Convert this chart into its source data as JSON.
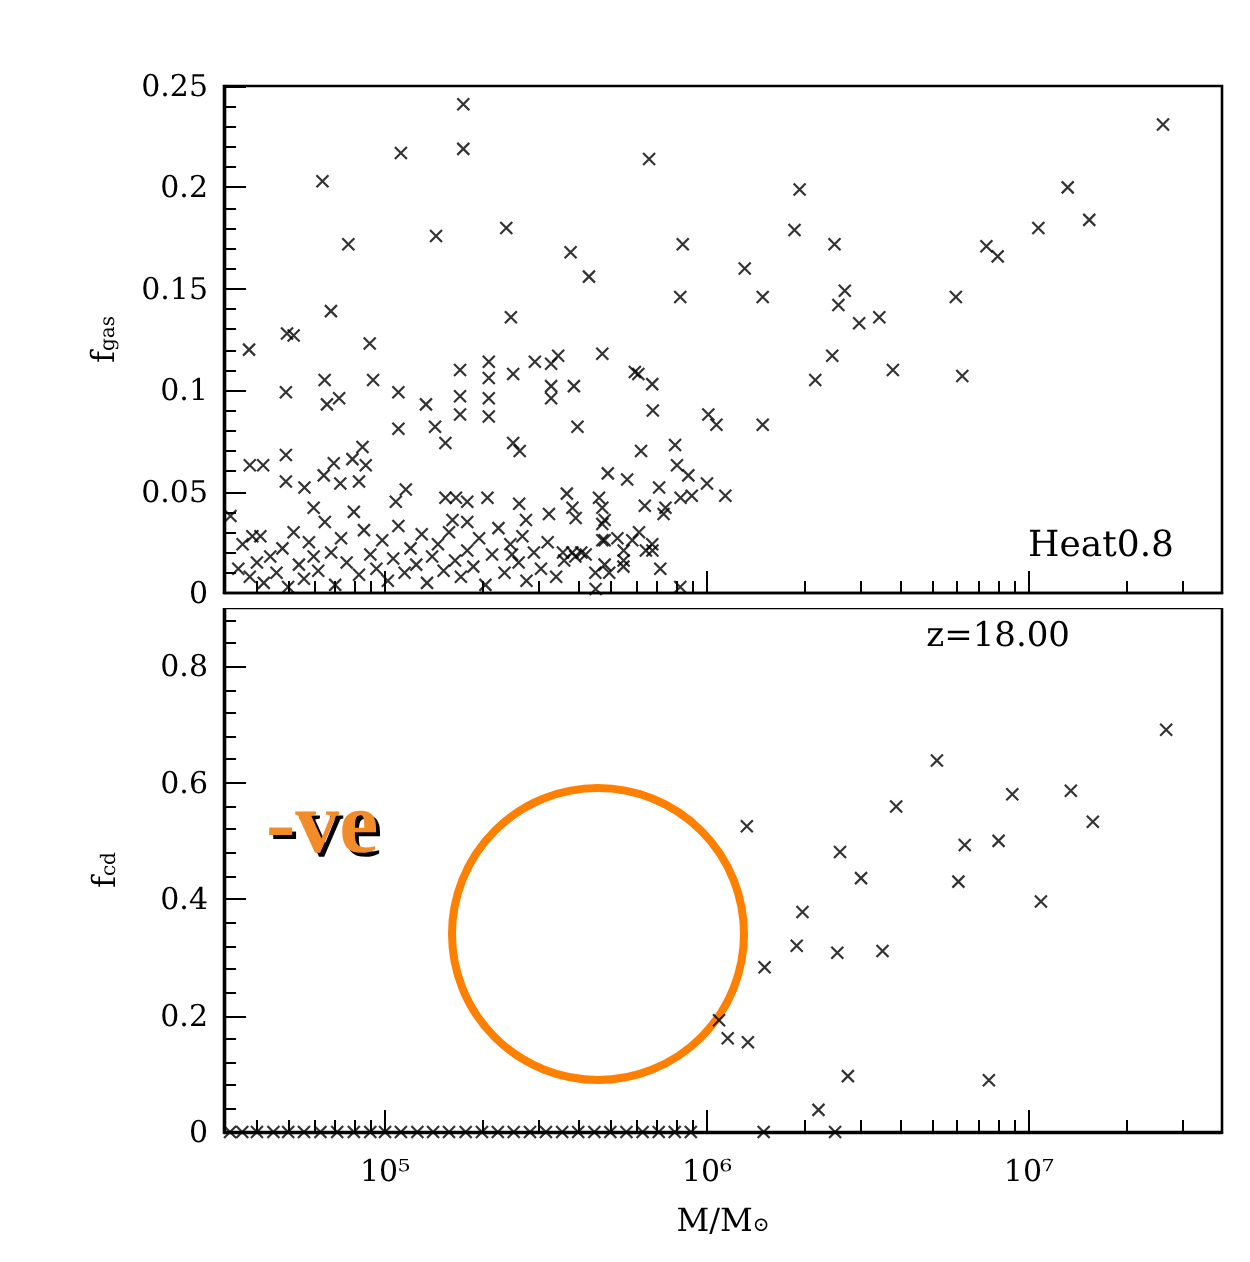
{
  "chart_data": [
    {
      "type": "scatter",
      "ylabel": "f$_{gas}$",
      "annotations": [
        "Heat0.8"
      ],
      "log": "x",
      "grid": false,
      "marker": "cross",
      "tick_labels": "y",
      "xlim": [
        31600,
        39800000
      ],
      "xticks": [
        {
          "value": 100000,
          "label": null
        },
        {
          "value": 1000000,
          "label": null
        },
        {
          "value": 10000000,
          "label": null
        }
      ],
      "ylim": [
        0,
        0.25
      ],
      "yticks": [
        0,
        0.05,
        0.1,
        0.15,
        0.2,
        0.25
      ],
      "series": [
        {
          "color": "#000000",
          "x": [
            175000,
            112000,
            175000,
            63900,
            76900,
            144000,
            238000,
            377000,
            430000,
            246000,
            67900,
            37800,
            49600,
            52000,
            49200,
            64900,
            66000,
            72000,
            89600,
            91800,
            110000,
            110000,
            134000,
            143000,
            154000,
            171000,
            171000,
            171000,
            210000,
            210000,
            210000,
            210000,
            250000,
            250000,
            262000,
            292000,
            328000,
            328000,
            328000,
            345000,
            386000,
            396000,
            473000,
            597000,
            26100000,
            13200000,
            15400000,
            10700000,
            7380000,
            8000000,
            5930000,
            6210000,
            3780000,
            3430000,
            2970000,
            2680000,
            2560000,
            2490000,
            2450000,
            2170000,
            1940000,
            1870000,
            1310000,
            1490000,
            1490000,
            661000,
            841000,
            826000,
            679000,
            676000,
            612000,
            624000,
            796000,
            1010000,
            1070000,
            807000,
            875000,
            1000000,
            1140000,
            897000,
            828000,
            710000,
            565000,
            492000,
            641000,
            743000,
            733000,
            473000,
            473000,
            473000,
            586000,
            646000,
            677000,
            551000,
            550000,
            497000,
            716000,
            826000,
            33100,
            36100,
            38700,
            41000,
            38000,
            41800,
            49200,
            49200,
            56200,
            60000,
            64500,
            69300,
            79200,
            85100,
            87100,
            83000,
            72600,
            108000,
            116000,
            154000,
            166000,
            180000,
            162000,
            180000,
            208000,
            261000,
            274000,
            267000,
            248000,
            323000,
            367000,
            382000,
            391000,
            357000,
            382000,
            407000,
            462000,
            481000,
            481000,
            481000,
            451000,
            527000,
            551000,
            615000,
            676000,
            35000,
            38000,
            40000,
            42000,
            44000,
            46000,
            48000,
            50000,
            52000,
            54000,
            56000,
            58000,
            60000,
            62000,
            65000,
            68000,
            70000,
            73000,
            76000,
            80000,
            83000,
            86000,
            90000,
            94000,
            98000,
            102000,
            106000,
            110000,
            115000,
            120000,
            125000,
            130000,
            135000,
            140000,
            146000,
            152000,
            158000,
            165000,
            172000,
            180000,
            188000,
            196000,
            205000,
            215000,
            225000,
            235000,
            245000,
            260000,
            275000,
            290000,
            305000,
            320000,
            340000,
            360000,
            390000,
            420000,
            450000
          ],
          "values": [
            0.241,
            0.217,
            0.219,
            0.203,
            0.172,
            0.176,
            0.18,
            0.168,
            0.156,
            0.136,
            0.139,
            0.12,
            0.128,
            0.127,
            0.099,
            0.105,
            0.093,
            0.096,
            0.123,
            0.105,
            0.099,
            0.081,
            0.093,
            0.082,
            0.074,
            0.11,
            0.097,
            0.088,
            0.114,
            0.106,
            0.096,
            0.087,
            0.108,
            0.074,
            0.07,
            0.114,
            0.113,
            0.102,
            0.096,
            0.117,
            0.102,
            0.082,
            0.118,
            0.109,
            0.231,
            0.2,
            0.184,
            0.18,
            0.171,
            0.166,
            0.146,
            0.107,
            0.11,
            0.136,
            0.133,
            0.149,
            0.142,
            0.172,
            0.117,
            0.105,
            0.199,
            0.179,
            0.16,
            0.146,
            0.083,
            0.214,
            0.172,
            0.146,
            0.09,
            0.103,
            0.108,
            0.07,
            0.073,
            0.088,
            0.083,
            0.063,
            0.058,
            0.054,
            0.048,
            0.048,
            0.047,
            0.052,
            0.056,
            0.059,
            0.043,
            0.042,
            0.039,
            0.042,
            0.034,
            0.026,
            0.026,
            0.021,
            0.021,
            0.021,
            0.013,
            0.01,
            0.012,
            0.003,
            0.038,
            0.024,
            0.028,
            0.028,
            0.063,
            0.063,
            0.068,
            0.055,
            0.052,
            0.042,
            0.058,
            0.064,
            0.066,
            0.072,
            0.063,
            0.055,
            0.054,
            0.045,
            0.051,
            0.047,
            0.047,
            0.045,
            0.036,
            0.035,
            0.047,
            0.044,
            0.036,
            0.028,
            0.019,
            0.039,
            0.049,
            0.042,
            0.037,
            0.02,
            0.02,
            0.02,
            0.047,
            0.036,
            0.026,
            0.014,
            0.002,
            0.027,
            0.016,
            0.03,
            0.024,
            0.012,
            0.008,
            0.015,
            0.005,
            0.018,
            0.01,
            0.022,
            0.003,
            0.03,
            0.014,
            0.007,
            0.025,
            0.018,
            0.011,
            0.035,
            0.02,
            0.004,
            0.027,
            0.015,
            0.04,
            0.009,
            0.031,
            0.019,
            0.012,
            0.026,
            0.006,
            0.017,
            0.033,
            0.01,
            0.022,
            0.014,
            0.029,
            0.005,
            0.018,
            0.024,
            0.011,
            0.03,
            0.016,
            0.008,
            0.021,
            0.013,
            0.027,
            0.004,
            0.019,
            0.032,
            0.01,
            0.024,
            0.015,
            0.006,
            0.02,
            0.012,
            0.025,
            0.008,
            0.016,
            0.018,
            0.019,
            0.01
          ]
        }
      ]
    },
    {
      "type": "scatter",
      "xlabel": "M/M$_{⊙}$",
      "ylabel": "f$_{cd}$",
      "annotations": [
        "z=18.00",
        "-ve"
      ],
      "log": "x",
      "grid": false,
      "marker": "cross",
      "xlim": [
        31600,
        39800000
      ],
      "xticks": [
        {
          "value": 100000,
          "label": "10⁵"
        },
        {
          "value": 1000000,
          "label": "10⁶"
        },
        {
          "value": 10000000,
          "label": "10⁷"
        }
      ],
      "ylim": [
        0,
        0.9
      ],
      "yticks": [
        0,
        0.2,
        0.4,
        0.6,
        0.8
      ],
      "series": [
        {
          "color": "#000000",
          "x": [
            1090000,
            1160000,
            1330000,
            1340000,
            1510000,
            1900000,
            1980000,
            2220000,
            2540000,
            2590000,
            2740000,
            3010000,
            3510000,
            3870000,
            5180000,
            6040000,
            6320000,
            7510000,
            8050000,
            8880000,
            10900000,
            13500000,
            15800000,
            26700000,
            33000,
            36000,
            40000,
            45000,
            50000,
            56000,
            63000,
            71000,
            80000,
            90000,
            100000,
            112000,
            126000,
            141000,
            158000,
            178000,
            200000,
            224000,
            251000,
            282000,
            316000,
            355000,
            398000,
            447000,
            501000,
            562000,
            631000,
            708000,
            794000,
            891000,
            1500000,
            2500000
          ],
          "values": [
            0.192,
            0.161,
            0.525,
            0.154,
            0.283,
            0.32,
            0.378,
            0.038,
            0.308,
            0.481,
            0.096,
            0.436,
            0.311,
            0.559,
            0.638,
            0.43,
            0.493,
            0.089,
            0.5,
            0.58,
            0.396,
            0.586,
            0.533,
            0.691,
            0,
            0,
            0,
            0,
            0,
            0,
            0,
            0,
            0,
            0,
            0,
            0,
            0,
            0,
            0,
            0,
            0,
            0,
            0,
            0,
            0,
            0,
            0,
            0,
            0,
            0,
            0,
            0,
            0,
            0,
            0,
            0
          ]
        }
      ]
    }
  ]
}
